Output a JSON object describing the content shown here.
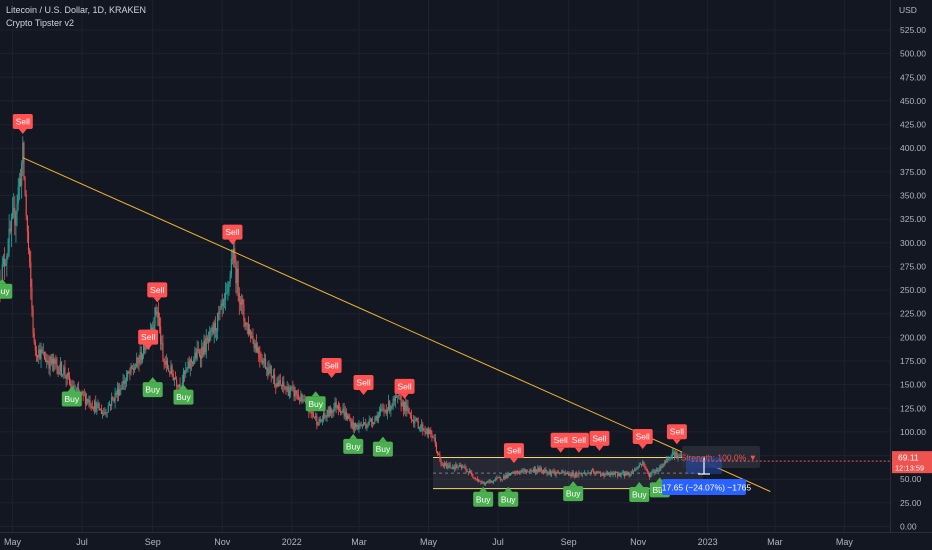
{
  "header": {
    "symbol": "Litecoin / U.S. Dollar, 1D, KRAKEN",
    "indicator": "Crypto Tipster v2"
  },
  "price_panel": {
    "currency": "USD",
    "last_price": "69.11",
    "countdown": "12:13:59"
  },
  "strength_label": "Strength: 100.0% ▼",
  "measure_label": "−17.65 (−24.07%) −1765",
  "colors": {
    "background": "#131722",
    "grid": "#1e222d",
    "up_candle": "#26a69a",
    "down_candle": "#ef5350",
    "sell_signal": "#ff5252",
    "buy_signal": "#4caf50",
    "trendline": "#f0b430",
    "range_box": "#f5d76e",
    "measure_blue": "#2962ff"
  },
  "chart_data": {
    "type": "candlestick",
    "title": "Litecoin / U.S. Dollar, 1D, KRAKEN",
    "ylabel": "USD",
    "xlabel": "",
    "ylim": [
      0,
      525
    ],
    "y_ticks": [
      0,
      25,
      50,
      75,
      100,
      125,
      150,
      175,
      200,
      225,
      250,
      275,
      300,
      325,
      350,
      375,
      400,
      425,
      450,
      475,
      500,
      525
    ],
    "x_tick_labels": [
      "May",
      "Jul",
      "Sep",
      "Nov",
      "2022",
      "Mar",
      "May",
      "Jul",
      "Sep",
      "Nov",
      "2023",
      "Mar",
      "May"
    ],
    "x_tick_dates": [
      "2021-05-01",
      "2021-07-01",
      "2021-09-01",
      "2021-11-01",
      "2022-01-01",
      "2022-03-01",
      "2022-05-01",
      "2022-07-01",
      "2022-09-01",
      "2022-11-01",
      "2023-01-01",
      "2023-03-01",
      "2023-05-01"
    ],
    "xlim": [
      "2021-04-20",
      "2023-06-10"
    ],
    "close_series": [
      [
        "2021-04-20",
        260
      ],
      [
        "2021-05-03",
        330
      ],
      [
        "2021-05-10",
        390
      ],
      [
        "2021-05-20",
        190
      ],
      [
        "2021-06-01",
        175
      ],
      [
        "2021-06-15",
        165
      ],
      [
        "2021-06-22",
        145
      ],
      [
        "2021-07-05",
        135
      ],
      [
        "2021-07-20",
        120
      ],
      [
        "2021-08-05",
        150
      ],
      [
        "2021-08-20",
        175
      ],
      [
        "2021-09-05",
        230
      ],
      [
        "2021-09-10",
        175
      ],
      [
        "2021-09-25",
        150
      ],
      [
        "2021-10-05",
        175
      ],
      [
        "2021-10-20",
        195
      ],
      [
        "2021-11-05",
        240
      ],
      [
        "2021-11-10",
        290
      ],
      [
        "2021-11-20",
        220
      ],
      [
        "2021-12-05",
        180
      ],
      [
        "2021-12-20",
        150
      ],
      [
        "2022-01-05",
        140
      ],
      [
        "2022-01-25",
        110
      ],
      [
        "2022-02-10",
        130
      ],
      [
        "2022-02-25",
        105
      ],
      [
        "2022-03-10",
        110
      ],
      [
        "2022-03-25",
        125
      ],
      [
        "2022-04-05",
        135
      ],
      [
        "2022-04-20",
        110
      ],
      [
        "2022-05-05",
        95
      ],
      [
        "2022-05-12",
        65
      ],
      [
        "2022-06-01",
        62
      ],
      [
        "2022-06-18",
        45
      ],
      [
        "2022-07-05",
        52
      ],
      [
        "2022-07-20",
        58
      ],
      [
        "2022-08-05",
        60
      ],
      [
        "2022-08-20",
        57
      ],
      [
        "2022-09-05",
        55
      ],
      [
        "2022-09-20",
        57
      ],
      [
        "2022-10-05",
        55
      ],
      [
        "2022-10-25",
        56
      ],
      [
        "2022-11-05",
        68
      ],
      [
        "2022-11-10",
        54
      ],
      [
        "2022-11-20",
        62
      ],
      [
        "2022-12-01",
        78
      ],
      [
        "2022-12-10",
        72
      ],
      [
        "2022-12-18",
        69
      ]
    ],
    "trendline": {
      "from": [
        "2021-05-10",
        390
      ],
      "to": [
        "2023-02-25",
        37
      ]
    },
    "range_box": {
      "from_date": "2022-05-05",
      "to_date": "2022-12-28",
      "top": 73,
      "bottom": 40
    },
    "signals": [
      {
        "type": "Sell",
        "date": "2021-05-10",
        "price": 415
      },
      {
        "type": "Buy",
        "date": "2021-04-22",
        "price": 262
      },
      {
        "type": "Buy",
        "date": "2021-06-22",
        "price": 148
      },
      {
        "type": "Sell",
        "date": "2021-08-28",
        "price": 187
      },
      {
        "type": "Sell",
        "date": "2021-09-05",
        "price": 237
      },
      {
        "type": "Buy",
        "date": "2021-09-01",
        "price": 158
      },
      {
        "type": "Buy",
        "date": "2021-09-28",
        "price": 150
      },
      {
        "type": "Sell",
        "date": "2021-11-10",
        "price": 298
      },
      {
        "type": "Buy",
        "date": "2022-01-22",
        "price": 143
      },
      {
        "type": "Sell",
        "date": "2022-02-05",
        "price": 157
      },
      {
        "type": "Buy",
        "date": "2022-02-24",
        "price": 98
      },
      {
        "type": "Sell",
        "date": "2022-03-05",
        "price": 139
      },
      {
        "type": "Buy",
        "date": "2022-03-22",
        "price": 95
      },
      {
        "type": "Sell",
        "date": "2022-04-10",
        "price": 135
      },
      {
        "type": "Buy",
        "date": "2022-06-18",
        "price": 42
      },
      {
        "type": "Buy",
        "date": "2022-07-10",
        "price": 42
      },
      {
        "type": "Sell",
        "date": "2022-07-15",
        "price": 67
      },
      {
        "type": "Sell",
        "date": "2022-08-25",
        "price": 78
      },
      {
        "type": "Buy",
        "date": "2022-09-05",
        "price": 48
      },
      {
        "type": "Sell",
        "date": "2022-09-10",
        "price": 78
      },
      {
        "type": "Sell",
        "date": "2022-09-28",
        "price": 80
      },
      {
        "type": "Buy",
        "date": "2022-11-02",
        "price": 47
      },
      {
        "type": "Sell",
        "date": "2022-11-05",
        "price": 82
      },
      {
        "type": "Buy",
        "date": "2022-11-20",
        "price": 52
      },
      {
        "type": "Sell",
        "date": "2022-12-05",
        "price": 87
      }
    ],
    "last_price": 69.11,
    "grid": true,
    "legend": "none"
  }
}
